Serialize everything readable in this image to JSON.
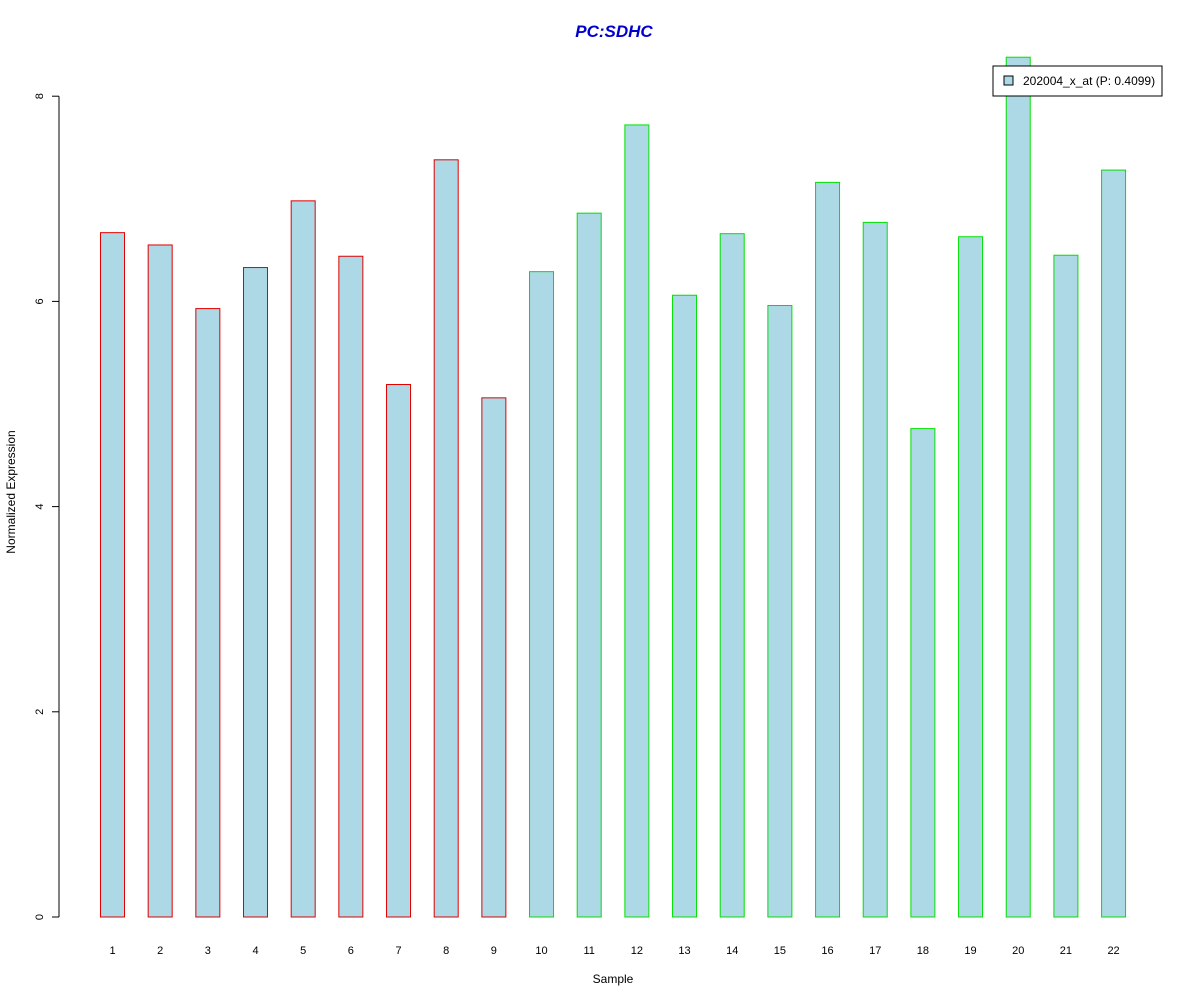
{
  "chart_data": {
    "type": "bar",
    "title": "PC:SDHC",
    "title_color": "#0000CC",
    "xlabel": "Sample",
    "ylabel": "Normalized Expression",
    "categories": [
      "1",
      "2",
      "3",
      "4",
      "5",
      "6",
      "7",
      "8",
      "9",
      "10",
      "11",
      "12",
      "13",
      "14",
      "15",
      "16",
      "17",
      "18",
      "19",
      "20",
      "21",
      "22"
    ],
    "series": [
      {
        "name": "202004_x_at (P: 0.4099)",
        "values": [
          6.67,
          6.55,
          5.93,
          6.33,
          6.98,
          6.44,
          5.19,
          7.38,
          5.06,
          6.29,
          6.86,
          7.72,
          6.06,
          6.66,
          5.96,
          7.16,
          6.77,
          4.76,
          6.63,
          8.38,
          6.45,
          7.28
        ],
        "fill": "#ADD8E6",
        "border_colors": [
          "#E00000",
          "#E00000",
          "#E00000",
          "#E00000",
          "#E00000",
          "#E00000",
          "#E00000",
          "#E00000",
          "#E00000",
          "#00E000",
          "#00E000",
          "#00E000",
          "#00E000",
          "#00E000",
          "#00E000",
          "#00E000",
          "#00E000",
          "#00E000",
          "#00E000",
          "#00E000",
          "#00E000",
          "#00E000"
        ]
      }
    ],
    "yticks": [
      0,
      2,
      4,
      6,
      8
    ],
    "ylim": [
      0,
      8.38
    ],
    "grid": false,
    "legend_position": "top-right"
  }
}
